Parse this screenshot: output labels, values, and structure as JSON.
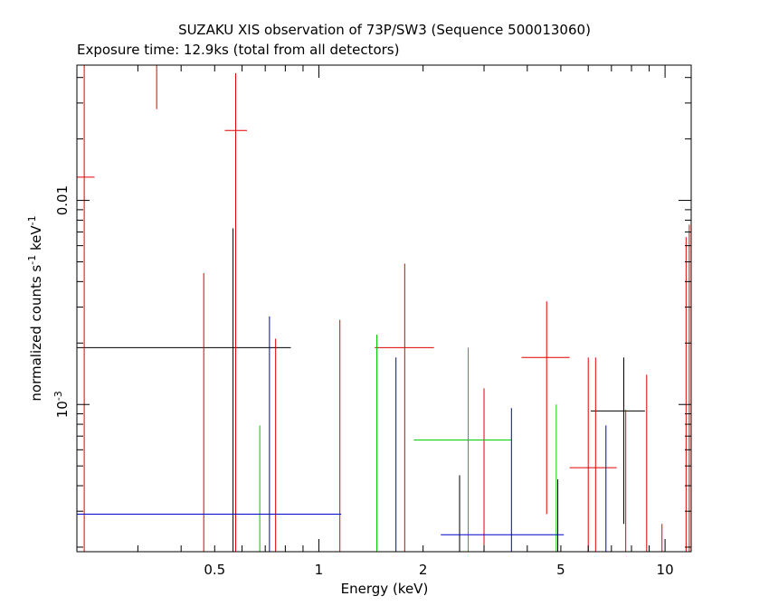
{
  "chart_data": {
    "type": "scatter",
    "title": "SUZAKU XIS observation of 73P/SW3 (Sequence 500013060)",
    "subtitle": "Exposure time: 12.9ks (total from all detectors)",
    "xlabel": "Energy (keV)",
    "ylabel": "normalized counts s",
    "ylabel_sup1": "-1",
    "ylabel_mid": " keV",
    "ylabel_sup2": "-1",
    "x_scale": "log",
    "y_scale": "log",
    "xlim": [
      0.2,
      11.9
    ],
    "ylim": [
      0.00019,
      0.046
    ],
    "grid": false,
    "x_ticks": [
      {
        "value": 0.5,
        "label": "0.5"
      },
      {
        "value": 1,
        "label": "1"
      },
      {
        "value": 2,
        "label": "2"
      },
      {
        "value": 5,
        "label": "5"
      },
      {
        "value": 10,
        "label": "10"
      }
    ],
    "y_ticks": [
      {
        "value": 0.001,
        "label": "10",
        "sup": "-3"
      },
      {
        "value": 0.01,
        "label": "0.01",
        "sup": ""
      }
    ],
    "colors": {
      "black": "#000000",
      "red": "#e00000",
      "green": "#00cc00",
      "blue": "#0000cc"
    },
    "series": [
      {
        "color": "black",
        "points": [
          {
            "x": 0.565,
            "y": 0.0019,
            "xlo": 0.2,
            "xhi": 0.83,
            "ylo": 0.00019,
            "yhi": 0.0073
          },
          {
            "x": 2.55,
            "y": 0.00025,
            "xlo": 2.55,
            "xhi": 2.55,
            "ylo": 0.00019,
            "yhi": 0.00045
          },
          {
            "x": 4.9,
            "y": 0.00025,
            "xlo": 4.9,
            "xhi": 4.9,
            "ylo": 0.00019,
            "yhi": 0.00043
          },
          {
            "x": 7.6,
            "y": 0.00093,
            "xlo": 6.1,
            "xhi": 8.75,
            "ylo": 0.00026,
            "yhi": 0.0017
          }
        ]
      },
      {
        "color": "red",
        "points": [
          {
            "x": 0.21,
            "y": 0.013,
            "xlo": 0.2,
            "xhi": 0.225,
            "ylo": 0.00019,
            "yhi": 0.046
          },
          {
            "x": 0.34,
            "y": 0.046,
            "xlo": 0.29,
            "xhi": 0.395,
            "ylo": 0.028,
            "yhi": 0.046
          },
          {
            "x": 0.575,
            "y": 0.022,
            "xlo": 0.535,
            "xhi": 0.62,
            "ylo": 0.00019,
            "yhi": 0.042
          },
          {
            "x": 0.465,
            "y": 0.0019,
            "xlo": 0.465,
            "xhi": 0.465,
            "ylo": 0.00019,
            "yhi": 0.0044
          },
          {
            "x": 0.75,
            "y": 0.0009,
            "xlo": 0.75,
            "xhi": 0.75,
            "ylo": 0.00019,
            "yhi": 0.0021
          },
          {
            "x": 1.15,
            "y": 0.001,
            "xlo": 1.15,
            "xhi": 1.15,
            "ylo": 0.00019,
            "yhi": 0.0026
          },
          {
            "x": 1.77,
            "y": 0.0019,
            "xlo": 1.45,
            "xhi": 2.15,
            "ylo": 0.00019,
            "yhi": 0.0049
          },
          {
            "x": 3.0,
            "y": 0.00055,
            "xlo": 3.0,
            "xhi": 3.0,
            "ylo": 0.00019,
            "yhi": 0.0012
          },
          {
            "x": 4.55,
            "y": 0.0017,
            "xlo": 3.85,
            "xhi": 5.3,
            "ylo": 0.00029,
            "yhi": 0.0032
          },
          {
            "x": 6.3,
            "y": 0.00049,
            "xlo": 5.3,
            "xhi": 7.25,
            "ylo": 0.00019,
            "yhi": 0.0017
          },
          {
            "x": 6.0,
            "y": 0.00065,
            "xlo": 6.0,
            "xhi": 6.0,
            "ylo": 0.00019,
            "yhi": 0.0017
          },
          {
            "x": 7.7,
            "y": 0.00045,
            "xlo": 7.7,
            "xhi": 7.7,
            "ylo": 0.00019,
            "yhi": 0.00094
          },
          {
            "x": 8.85,
            "y": 0.00055,
            "xlo": 8.85,
            "xhi": 8.85,
            "ylo": 0.00019,
            "yhi": 0.0014
          },
          {
            "x": 9.8,
            "y": 0.00022,
            "xlo": 9.8,
            "xhi": 9.8,
            "ylo": 0.00019,
            "yhi": 0.00026
          },
          {
            "x": 11.5,
            "y": 0.002,
            "xlo": 11.5,
            "xhi": 11.5,
            "ylo": 0.00019,
            "yhi": 0.0066
          },
          {
            "x": 11.75,
            "y": 0.0026,
            "xlo": 11.75,
            "xhi": 11.75,
            "ylo": 0.00019,
            "yhi": 0.0076
          }
        ]
      },
      {
        "color": "green",
        "points": [
          {
            "x": 0.675,
            "y": 0.00035,
            "xlo": 0.675,
            "xhi": 0.675,
            "ylo": 0.00019,
            "yhi": 0.00079
          },
          {
            "x": 1.47,
            "y": 0.001,
            "xlo": 1.47,
            "xhi": 1.47,
            "ylo": 0.00019,
            "yhi": 0.0022
          },
          {
            "x": 2.7,
            "y": 0.00067,
            "xlo": 1.88,
            "xhi": 3.6,
            "ylo": 0.00019,
            "yhi": 0.0019
          },
          {
            "x": 4.85,
            "y": 0.00019,
            "xlo": 3.6,
            "xhi": 6.15,
            "ylo": 0.00019,
            "yhi": 0.00019
          },
          {
            "x": 4.85,
            "y": 0.0005,
            "xlo": 4.85,
            "xhi": 4.85,
            "ylo": 0.00019,
            "yhi": 0.001
          }
        ]
      },
      {
        "color": "blue",
        "points": [
          {
            "x": 0.72,
            "y": 0.0012,
            "xlo": 0.72,
            "xhi": 0.72,
            "ylo": 0.00019,
            "yhi": 0.0027
          },
          {
            "x": 0.72,
            "y": 0.00029,
            "xlo": 0.2,
            "xhi": 1.16,
            "ylo": 0.00029,
            "yhi": 0.00029
          },
          {
            "x": 1.67,
            "y": 0.0008,
            "xlo": 1.67,
            "xhi": 1.67,
            "ylo": 0.00019,
            "yhi": 0.0017
          },
          {
            "x": 3.6,
            "y": 0.00023,
            "xlo": 2.25,
            "xhi": 5.1,
            "ylo": 0.00019,
            "yhi": 0.00096
          },
          {
            "x": 6.75,
            "y": 0.00019,
            "xlo": 5.2,
            "xhi": 8.35,
            "ylo": 0.00019,
            "yhi": 0.00079
          }
        ]
      }
    ]
  }
}
